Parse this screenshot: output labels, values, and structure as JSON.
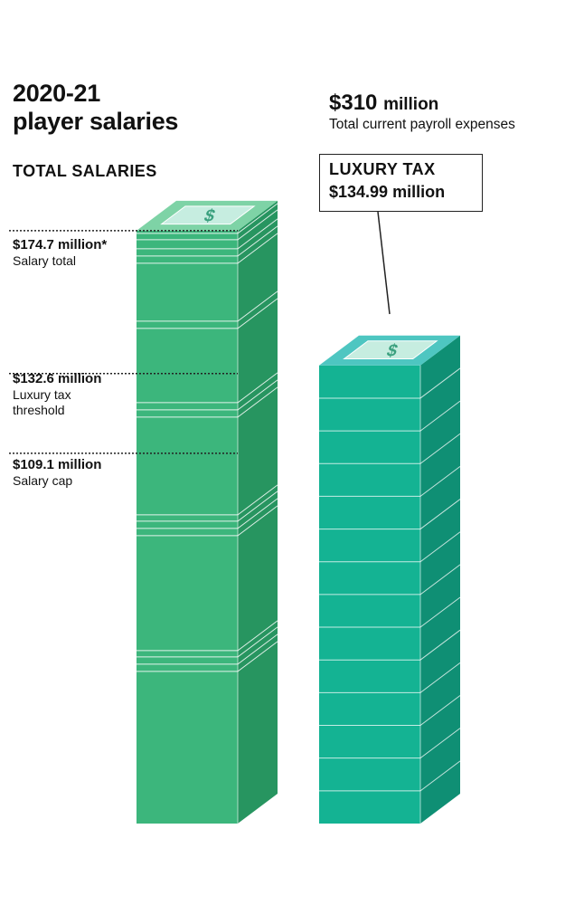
{
  "title": {
    "line1": "2020-21",
    "line2": "player salaries"
  },
  "section_label": "TOTAL SALARIES",
  "payroll": {
    "amount": "$310",
    "unit": "million",
    "description": "Total current payroll expenses"
  },
  "callout": {
    "title": "LUXURY TAX",
    "value": "$134.99 million"
  },
  "markers": [
    {
      "value": "$174.7 million*",
      "desc": [
        "Salary total"
      ]
    },
    {
      "value": "$132.6 million",
      "desc": [
        "Luxury tax",
        "threshold"
      ]
    },
    {
      "value": "$109.1 million",
      "desc": [
        "Salary cap"
      ]
    }
  ],
  "icons": {
    "bill": "dollar-bill-icon"
  },
  "colors": {
    "salary_front": "#3cb67c",
    "salary_side": "#279560",
    "salary_top": "#7ed3a6",
    "tax_front": "#14b393",
    "tax_side": "#0f8f74",
    "tax_top": "#4ec6c1",
    "bill_face": "#c6ede0",
    "dollar": "#3aa07e"
  },
  "chart_data": {
    "type": "bar",
    "categories": [
      "Total salaries",
      "Luxury tax"
    ],
    "values": [
      174.7,
      134.99
    ],
    "units": "$ million",
    "reference_lines": [
      {
        "value": 174.7,
        "label": "Salary total"
      },
      {
        "value": 132.6,
        "label": "Luxury tax threshold"
      },
      {
        "value": 109.1,
        "label": "Salary cap"
      }
    ],
    "total_payroll": 310
  }
}
